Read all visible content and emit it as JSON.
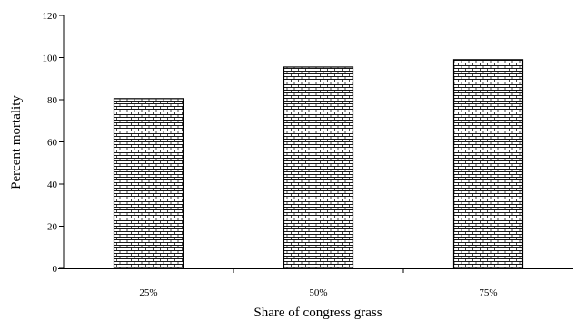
{
  "chart_data": {
    "type": "bar",
    "categories": [
      "25%",
      "50%",
      "75%"
    ],
    "values": [
      80.5,
      95.5,
      99
    ],
    "xlabel": "Share of congress grass",
    "ylabel": "Percent mortality",
    "ylim": [
      0,
      120
    ],
    "yticks": [
      "0",
      "20",
      "40",
      "60",
      "80",
      "100",
      "120"
    ],
    "grid": false,
    "legend": "none",
    "bar_fill": "#ffffff",
    "bar_pattern": "brick",
    "bar_pattern_color": "#000000",
    "axis_color": "#000000"
  }
}
